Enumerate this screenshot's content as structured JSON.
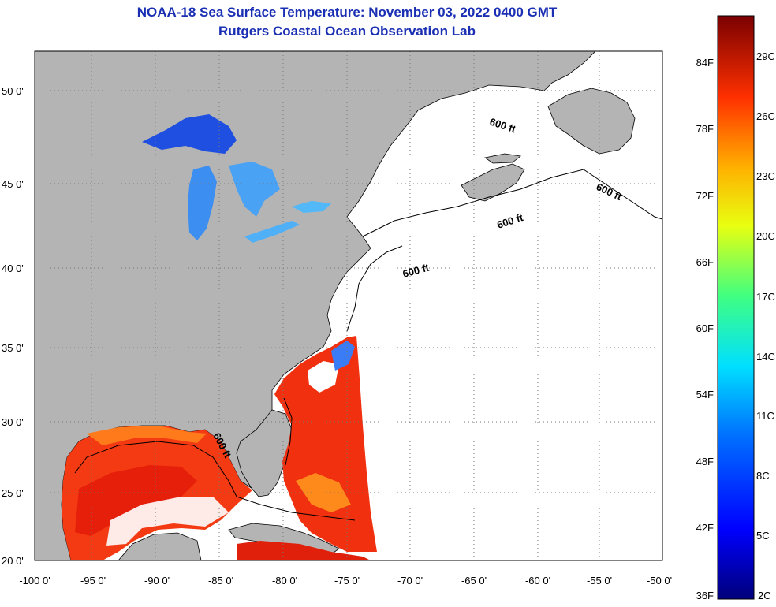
{
  "title": "NOAA-18 Sea Surface Temperature:  November 03, 2022 0400 GMT",
  "subtitle": "Rutgers Coastal Ocean Observation Lab",
  "lat_labels": [
    "50 0'",
    "45 0'",
    "40 0'",
    "35 0'",
    "30 0'",
    "25 0'",
    "20 0'"
  ],
  "lon_labels": [
    "-100 0'",
    "-95 0'",
    "-90 0'",
    "-85 0'",
    "-80 0'",
    "-75 0'",
    "-70 0'",
    "-65 0'",
    "-60 0'",
    "-55 0'",
    "-50 0'"
  ],
  "contour_labels": [
    "600 ft",
    "600 ft",
    "600 ft",
    "600 ft",
    "600 ft"
  ],
  "colorbar": {
    "fahrenheit": [
      "84F",
      "78F",
      "72F",
      "66F",
      "60F",
      "54F",
      "48F",
      "42F",
      "36F"
    ],
    "celsius": [
      "29C",
      "26C",
      "23C",
      "20C",
      "17C",
      "14C",
      "11C",
      "8C",
      "5C",
      "2C"
    ]
  },
  "colors": {
    "land": "#b4b4b4",
    "title": "#1a2fb3",
    "water": "#ffffff"
  }
}
